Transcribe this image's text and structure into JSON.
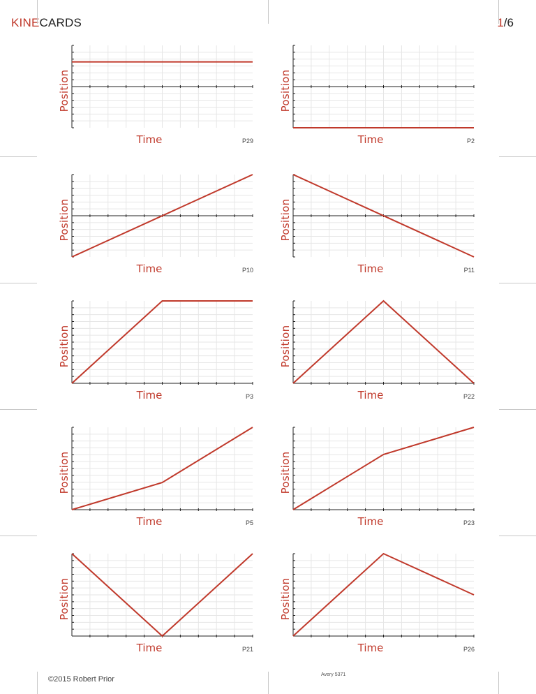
{
  "header": {
    "brand_accent": "KINE",
    "brand_rest": "CARDS",
    "page_current": "1",
    "page_sep": "/",
    "page_total": "6"
  },
  "colors": {
    "accent": "#c0392b",
    "grid": "#e6e6e6",
    "axis": "#222222"
  },
  "cards": [
    {
      "id": "P29",
      "ylabel": "Position",
      "xlabel": "Time",
      "origin": "middle",
      "points": [
        [
          0,
          0.6
        ],
        [
          1,
          0.6
        ]
      ]
    },
    {
      "id": "P2",
      "ylabel": "Position",
      "xlabel": "Time",
      "origin": "middle",
      "points": [
        [
          0,
          -1
        ],
        [
          1,
          -1
        ]
      ]
    },
    {
      "id": "P10",
      "ylabel": "Position",
      "xlabel": "Time",
      "origin": "middle",
      "points": [
        [
          0,
          -1
        ],
        [
          1,
          1
        ]
      ]
    },
    {
      "id": "P11",
      "ylabel": "Position",
      "xlabel": "Time",
      "origin": "middle",
      "points": [
        [
          0,
          1
        ],
        [
          1,
          -1
        ]
      ]
    },
    {
      "id": "P3",
      "ylabel": "Position",
      "xlabel": "Time",
      "origin": "bottom",
      "points": [
        [
          0,
          0
        ],
        [
          0.5,
          1
        ],
        [
          1,
          1
        ]
      ]
    },
    {
      "id": "P22",
      "ylabel": "Position",
      "xlabel": "Time",
      "origin": "bottom",
      "points": [
        [
          0,
          0
        ],
        [
          0.5,
          1
        ],
        [
          1,
          0
        ]
      ]
    },
    {
      "id": "P5",
      "ylabel": "Position",
      "xlabel": "Time",
      "origin": "bottom",
      "points": [
        [
          0,
          0
        ],
        [
          0.5,
          0.33
        ],
        [
          1,
          1
        ]
      ]
    },
    {
      "id": "P23",
      "ylabel": "Position",
      "xlabel": "Time",
      "origin": "bottom",
      "points": [
        [
          0,
          0
        ],
        [
          0.5,
          0.67
        ],
        [
          1,
          1
        ]
      ]
    },
    {
      "id": "P21",
      "ylabel": "Position",
      "xlabel": "Time",
      "origin": "bottom",
      "points": [
        [
          0,
          1
        ],
        [
          0.5,
          0
        ],
        [
          1,
          1
        ]
      ]
    },
    {
      "id": "P26",
      "ylabel": "Position",
      "xlabel": "Time",
      "origin": "bottom",
      "points": [
        [
          0,
          0
        ],
        [
          0.5,
          1
        ],
        [
          1,
          0.5
        ]
      ]
    }
  ],
  "footer": {
    "copyright": "©2015 Robert Prior",
    "avery": "Avery 5371"
  }
}
